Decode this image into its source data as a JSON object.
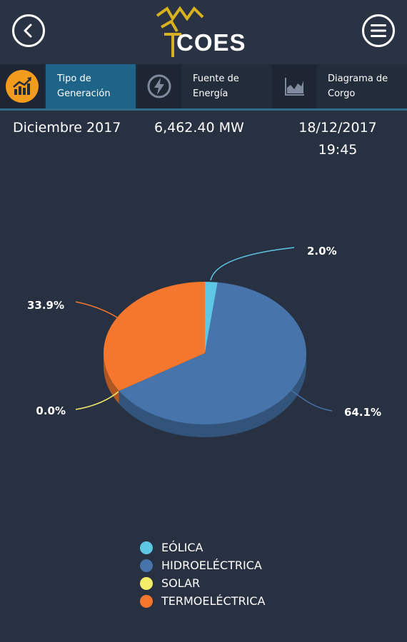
{
  "header": {
    "logo_text": "COES",
    "back_icon": "back-arrow-icon",
    "menu_icon": "hamburger-menu-icon"
  },
  "tabs": [
    {
      "label": "Tipo de Generación",
      "icon": "chart-up-icon",
      "active": true
    },
    {
      "label": "Fuente de Energía",
      "icon": "lightning-icon",
      "active": false
    },
    {
      "label": "Diagrama de Corgo",
      "icon": "area-chart-icon",
      "active": false
    }
  ],
  "info": {
    "period": "Diciembre 2017",
    "power": "6,462.40 MW",
    "date": "18/12/2017",
    "time": "19:45"
  },
  "chart_data": {
    "type": "pie",
    "title": "",
    "categories": [
      "EÓLICA",
      "HIDROELÉCTRICA",
      "SOLAR",
      "TERMOELÉCTRICA"
    ],
    "values": [
      2.0,
      64.1,
      0.0,
      33.9
    ],
    "labels": [
      "2.0%",
      "64.1%",
      "0.0%",
      "33.9%"
    ],
    "colors": [
      "#5ec7e6",
      "#4674ab",
      "#f4ed6a",
      "#f5772e"
    ],
    "legend_position": "bottom",
    "style": "3d"
  },
  "legend": [
    {
      "label": "EÓLICA",
      "color": "#5ec7e6"
    },
    {
      "label": "HIDROELÉCTRICA",
      "color": "#4674ab"
    },
    {
      "label": "SOLAR",
      "color": "#f4ed6a"
    },
    {
      "label": "TERMOELÉCTRICA",
      "color": "#f5772e"
    }
  ]
}
